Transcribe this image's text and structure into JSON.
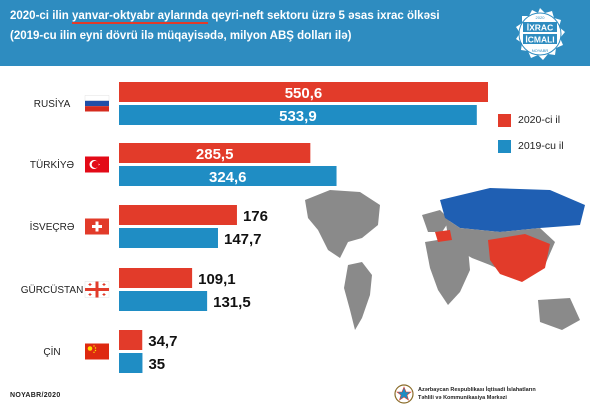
{
  "header": {
    "title_prefix": "2020-ci ilin ",
    "title_highlight": "yanvar-oktyabr aylarında",
    "title_suffix": " qeyri-neft sektoru üzrə 5 əsas ixrac ölkəsi",
    "subtitle": "(2019-cu ilin eyni dövrü ilə müqayisədə, milyon ABŞ dolları ilə)"
  },
  "badge": {
    "top_text": "2020",
    "line1": "İXRAC",
    "line2": "İCMALI",
    "bottom_text": "NOYABR"
  },
  "legend": {
    "items": [
      {
        "label": "2020-ci il",
        "color": "#e23b2a"
      },
      {
        "label": "2019-cu il",
        "color": "#1f8dc4"
      }
    ]
  },
  "footer": {
    "date": "NOYABR/2020",
    "org_line1": "Azərbaycan Respublikası İqtisadi İslahatların",
    "org_line2": "Təhlili və Kommunikasiya Mərkəzi"
  },
  "colors": {
    "header_bg": "#2e8cc0",
    "bar_2020": "#e23b2a",
    "bar_2019": "#1f8dc4",
    "map_grey": "#8a8a8a"
  },
  "chart_data": {
    "type": "bar",
    "orientation": "horizontal",
    "categories": [
      "RUSİYA",
      "TÜRKİYƏ",
      "İSVEÇRƏ",
      "GÜRCÜSTAN",
      "ÇİN"
    ],
    "flags": [
      "russia-flag-icon",
      "turkey-flag-icon",
      "switzerland-flag-icon",
      "georgia-flag-icon",
      "china-flag-icon"
    ],
    "series": [
      {
        "name": "2020-ci il",
        "values": [
          550.6,
          285.5,
          176,
          109.1,
          34.7
        ]
      },
      {
        "name": "2019-cu il",
        "values": [
          533.9,
          324.6,
          147.7,
          131.5,
          35
        ]
      }
    ],
    "value_labels": [
      [
        "550,6",
        "285,5",
        "176",
        "109,1",
        "34,7"
      ],
      [
        "533,9",
        "324,6",
        "147,7",
        "131,5",
        "35"
      ]
    ],
    "xlim": [
      0,
      570
    ],
    "grid": false,
    "legend_position": "right"
  }
}
